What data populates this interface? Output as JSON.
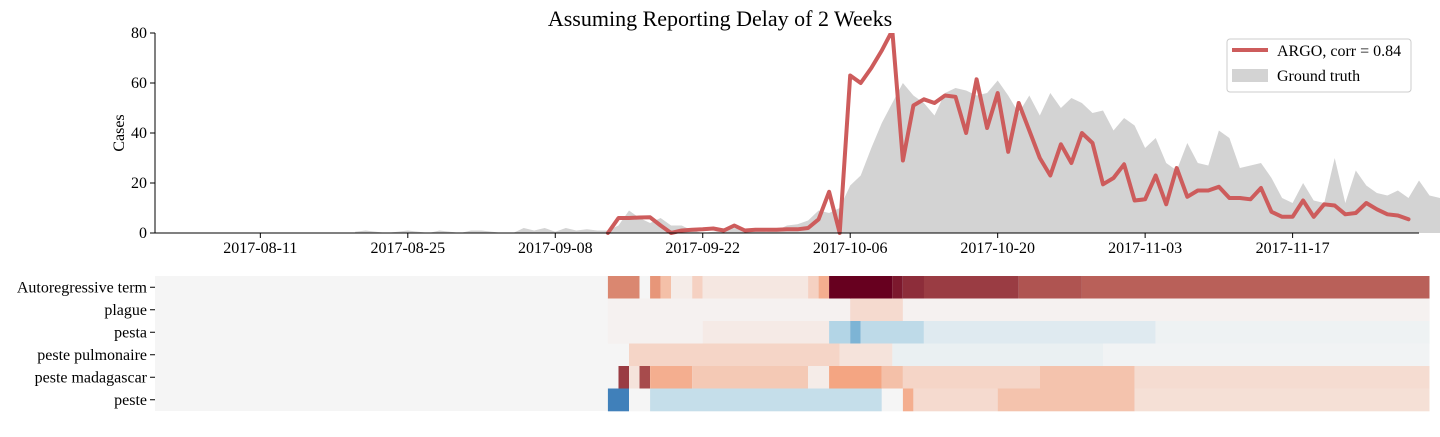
{
  "colors": {
    "argo_line": "#cd5c5c",
    "ground_truth_fill": "#d3d3d3",
    "heatmap_neutral": "#f5f5f5",
    "heatmap_positive": "#67001f",
    "heatmap_negative": "#2166ac"
  },
  "chart_data": [
    {
      "type": "area",
      "title": "Assuming Reporting Delay of 2 Weeks",
      "xlabel": "",
      "ylabel": "Cases",
      "x_start": "2017-08-01",
      "x_end": "2017-11-29",
      "ylim": [
        0,
        80
      ],
      "yticks": [
        0,
        20,
        40,
        60,
        80
      ],
      "xticks": [
        "2017-08-11",
        "2017-08-25",
        "2017-09-08",
        "2017-09-22",
        "2017-10-06",
        "2017-10-20",
        "2017-11-03",
        "2017-11-17"
      ],
      "grid": false,
      "legend_position": "top-right",
      "series": [
        {
          "name": "ARGO, corr = 0.84",
          "kind": "line",
          "start": "2017-09-13",
          "values": [
            0,
            6,
            6,
            6.2,
            6.3,
            3,
            0,
            1,
            1.3,
            1.5,
            1.8,
            1,
            3,
            1,
            1.3,
            1.3,
            1.3,
            1.5,
            1.5,
            2,
            5.5,
            16.5,
            0,
            63,
            60,
            66,
            73,
            81,
            29,
            51,
            53.5,
            52,
            55,
            54.5,
            40,
            61.5,
            42,
            56,
            32.5,
            52,
            41,
            30,
            23,
            35.5,
            28,
            40,
            36,
            19.5,
            22,
            27.5,
            13,
            13.5,
            23,
            11.5,
            26,
            14.5,
            17,
            17,
            18.5,
            14,
            14,
            13.5,
            18,
            8.5,
            6.5,
            6.5,
            13,
            6.5,
            11.5,
            11,
            7.5,
            8,
            12,
            9.5,
            7.5,
            7,
            5.5
          ]
        },
        {
          "name": "Ground truth",
          "kind": "area",
          "start": "2017-08-20",
          "values": [
            0.5,
            1,
            0.5,
            0,
            0.5,
            1,
            0.5,
            0,
            1,
            0.5,
            0,
            1,
            1,
            0.5,
            0,
            0,
            2,
            1,
            2,
            0.5,
            2,
            1,
            1.5,
            1,
            1,
            3,
            9,
            6,
            4,
            6,
            3,
            3,
            1,
            0,
            0.5,
            1,
            2,
            1,
            2,
            0.5,
            1,
            3,
            3.5,
            5,
            9,
            8,
            10,
            19,
            23,
            34,
            44,
            52,
            60,
            55,
            52,
            47,
            56,
            58,
            57,
            55,
            56,
            61,
            55,
            48,
            55,
            47,
            56,
            50,
            54,
            52,
            48,
            49,
            41,
            46,
            43,
            34,
            38,
            28,
            25,
            36,
            28,
            27,
            41,
            38,
            26,
            27,
            28,
            22,
            14,
            12,
            20,
            13,
            12,
            30,
            12,
            25,
            19,
            16,
            15,
            17,
            14,
            21,
            15,
            14,
            13,
            11,
            13,
            12,
            12,
            8,
            7,
            6,
            8,
            7,
            5,
            4,
            3,
            1.5
          ]
        }
      ]
    },
    {
      "type": "heatmap",
      "rows": [
        "Autoregressive term",
        "plague",
        "pesta",
        "peste pulmonaire",
        "peste madagascar",
        "peste"
      ],
      "x_start": "2017-08-01",
      "x_end": "2017-11-29",
      "segments": [
        [
          {
            "from": "2017-09-13",
            "to": "2017-09-15",
            "value": 0.55
          },
          {
            "from": "2017-09-16",
            "to": "2017-09-16",
            "value": 0.0
          },
          {
            "from": "2017-09-17",
            "to": "2017-09-17",
            "value": 0.5
          },
          {
            "from": "2017-09-18",
            "to": "2017-09-18",
            "value": 0.3
          },
          {
            "from": "2017-09-19",
            "to": "2017-09-20",
            "value": 0.05
          },
          {
            "from": "2017-09-21",
            "to": "2017-09-21",
            "value": 0.2
          },
          {
            "from": "2017-09-22",
            "to": "2017-10-01",
            "value": 0.08
          },
          {
            "from": "2017-10-02",
            "to": "2017-10-02",
            "value": 0.2
          },
          {
            "from": "2017-10-03",
            "to": "2017-10-03",
            "value": 0.4
          },
          {
            "from": "2017-10-04",
            "to": "2017-10-09",
            "value": 1.0
          },
          {
            "from": "2017-10-10",
            "to": "2017-10-10",
            "value": 0.92
          },
          {
            "from": "2017-10-11",
            "to": "2017-10-12",
            "value": 0.85
          },
          {
            "from": "2017-10-13",
            "to": "2017-10-21",
            "value": 0.8
          },
          {
            "from": "2017-10-22",
            "to": "2017-10-27",
            "value": 0.72
          },
          {
            "from": "2017-10-28",
            "to": "2017-11-29",
            "value": 0.68
          }
        ],
        [
          {
            "from": "2017-09-13",
            "to": "2017-10-05",
            "value": 0.02
          },
          {
            "from": "2017-10-06",
            "to": "2017-10-10",
            "value": 0.15
          },
          {
            "from": "2017-10-11",
            "to": "2017-11-29",
            "value": 0.02
          }
        ],
        [
          {
            "from": "2017-09-13",
            "to": "2017-09-21",
            "value": 0.02
          },
          {
            "from": "2017-09-22",
            "to": "2017-10-03",
            "value": 0.06
          },
          {
            "from": "2017-10-04",
            "to": "2017-10-05",
            "value": -0.3
          },
          {
            "from": "2017-10-06",
            "to": "2017-10-06",
            "value": -0.55
          },
          {
            "from": "2017-10-07",
            "to": "2017-10-12",
            "value": -0.25
          },
          {
            "from": "2017-10-13",
            "to": "2017-11-03",
            "value": -0.1
          },
          {
            "from": "2017-11-04",
            "to": "2017-11-29",
            "value": -0.03
          }
        ],
        [
          {
            "from": "2017-09-15",
            "to": "2017-10-04",
            "value": 0.18
          },
          {
            "from": "2017-10-05",
            "to": "2017-10-09",
            "value": 0.1
          },
          {
            "from": "2017-10-10",
            "to": "2017-10-29",
            "value": -0.05
          },
          {
            "from": "2017-10-30",
            "to": "2017-11-29",
            "value": -0.02
          }
        ],
        [
          {
            "from": "2017-09-14",
            "to": "2017-09-14",
            "value": 0.8
          },
          {
            "from": "2017-09-15",
            "to": "2017-09-15",
            "value": 0.1
          },
          {
            "from": "2017-09-16",
            "to": "2017-09-16",
            "value": 0.75
          },
          {
            "from": "2017-09-17",
            "to": "2017-09-20",
            "value": 0.4
          },
          {
            "from": "2017-09-21",
            "to": "2017-10-01",
            "value": 0.25
          },
          {
            "from": "2017-10-02",
            "to": "2017-10-03",
            "value": 0.05
          },
          {
            "from": "2017-10-04",
            "to": "2017-10-08",
            "value": 0.45
          },
          {
            "from": "2017-10-09",
            "to": "2017-10-10",
            "value": 0.3
          },
          {
            "from": "2017-10-11",
            "to": "2017-10-23",
            "value": 0.18
          },
          {
            "from": "2017-10-24",
            "to": "2017-11-01",
            "value": 0.28
          },
          {
            "from": "2017-11-02",
            "to": "2017-11-29",
            "value": 0.14
          }
        ],
        [
          {
            "from": "2017-09-13",
            "to": "2017-09-14",
            "value": -0.85
          },
          {
            "from": "2017-09-15",
            "to": "2017-09-16",
            "value": 0.0
          },
          {
            "from": "2017-09-17",
            "to": "2017-10-08",
            "value": -0.22
          },
          {
            "from": "2017-10-09",
            "to": "2017-10-10",
            "value": 0.0
          },
          {
            "from": "2017-10-11",
            "to": "2017-10-11",
            "value": 0.4
          },
          {
            "from": "2017-10-12",
            "to": "2017-10-19",
            "value": 0.15
          },
          {
            "from": "2017-10-20",
            "to": "2017-11-01",
            "value": 0.28
          },
          {
            "from": "2017-11-02",
            "to": "2017-11-29",
            "value": 0.12
          }
        ]
      ]
    }
  ]
}
